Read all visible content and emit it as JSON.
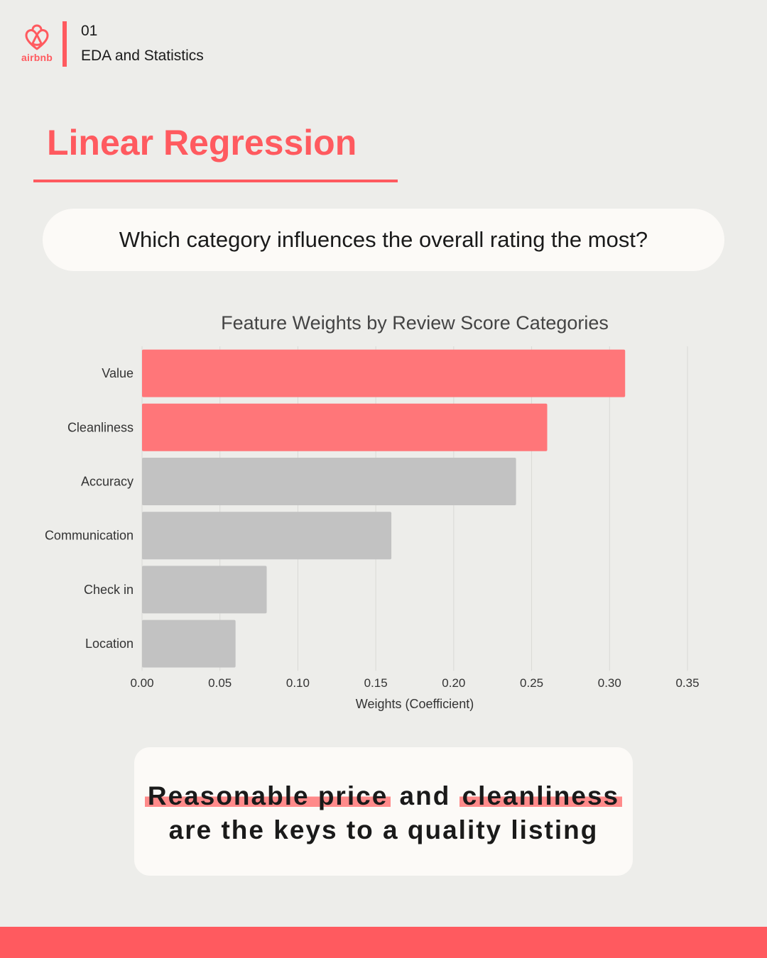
{
  "header": {
    "logo_text": "airbnb",
    "section_number": "01",
    "section_title": "EDA and Statistics"
  },
  "title": "Linear Regression",
  "question": "Which category influences the overall rating the most?",
  "colors": {
    "brand": "#ff5a5f",
    "highlight_bar": "#ff7679",
    "neutral_bar": "#c2c2c2"
  },
  "chart_data": {
    "type": "bar",
    "orientation": "horizontal",
    "title": "Feature Weights by Review Score Categories",
    "categories": [
      "Value",
      "Cleanliness",
      "Accuracy",
      "Communication",
      "Check in",
      "Location"
    ],
    "values": [
      0.31,
      0.26,
      0.24,
      0.16,
      0.08,
      0.06
    ],
    "highlighted": [
      true,
      true,
      false,
      false,
      false,
      false
    ],
    "xlabel": "Weights (Coefficient)",
    "ylabel": "",
    "xlim": [
      0,
      0.35
    ],
    "xticks": [
      "0.00",
      "0.05",
      "0.10",
      "0.15",
      "0.20",
      "0.25",
      "0.30",
      "0.35"
    ],
    "grid": "vertical"
  },
  "takeaway": {
    "line1_highlight1": "Reasonable price",
    "line1_middle": "and",
    "line1_highlight2": "cleanliness",
    "line2": "are the keys to a quality listing"
  }
}
